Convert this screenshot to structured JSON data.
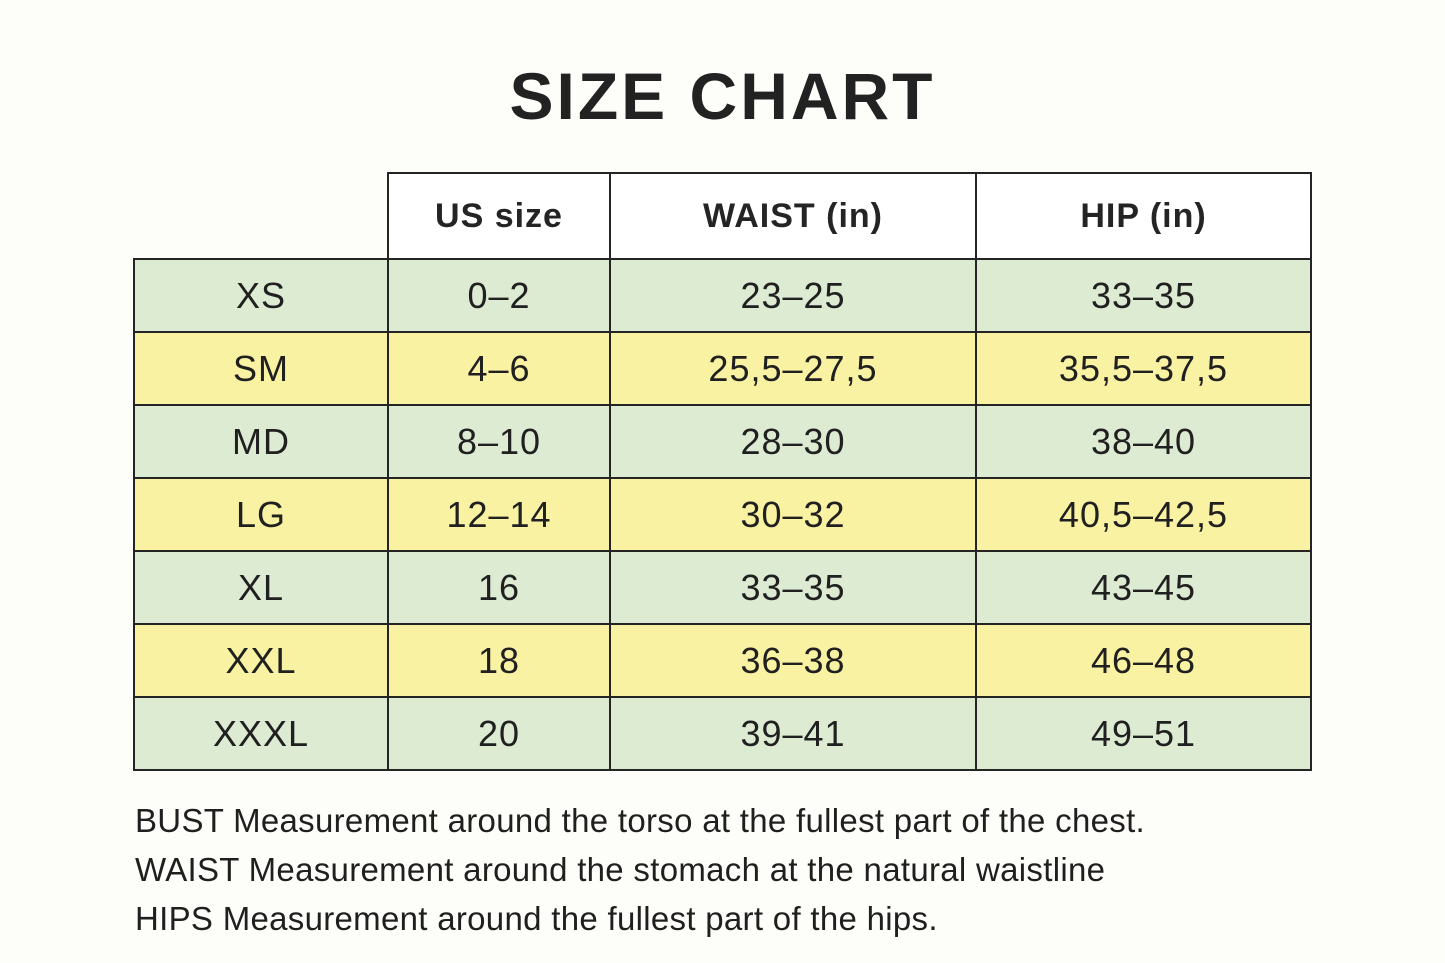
{
  "title": "SIZE CHART",
  "table": {
    "columns": [
      "US size",
      "WAIST (in)",
      "HIP (in)"
    ],
    "rows": [
      {
        "size": "XS",
        "us_size": "0–2",
        "waist": "23–25",
        "hip": "33–35"
      },
      {
        "size": "SM",
        "us_size": "4–6",
        "waist": "25,5–27,5",
        "hip": "35,5–37,5"
      },
      {
        "size": "MD",
        "us_size": "8–10",
        "waist": "28–30",
        "hip": "38–40"
      },
      {
        "size": "LG",
        "us_size": "12–14",
        "waist": "30–32",
        "hip": "40,5–42,5"
      },
      {
        "size": "XL",
        "us_size": "16",
        "waist": "33–35",
        "hip": "43–45"
      },
      {
        "size": "XXL",
        "us_size": "18",
        "waist": "36–38",
        "hip": "46–48"
      },
      {
        "size": "XXXL",
        "us_size": "20",
        "waist": "39–41",
        "hip": "49–51"
      }
    ]
  },
  "notes": [
    "BUST Measurement around the torso at the fullest part of the chest.",
    "WAIST Measurement around the stomach at the natural waistline",
    "HIPS Measurement around the fullest part of the hips."
  ],
  "colors": {
    "row_green": "#ddebd3",
    "row_yellow": "#f9f2a3",
    "border": "#242424",
    "text": "#1f1f1f",
    "header_background": "#ffffff",
    "page_background": "#fdfdf9"
  }
}
